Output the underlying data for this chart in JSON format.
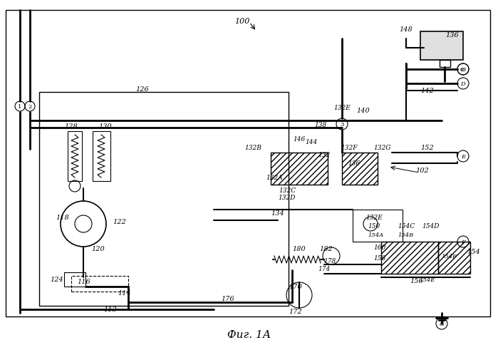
{
  "title": "Фиг. 1А",
  "bg_color": "#ffffff",
  "label_100": "100",
  "fig_label": "Фиг. 1А"
}
